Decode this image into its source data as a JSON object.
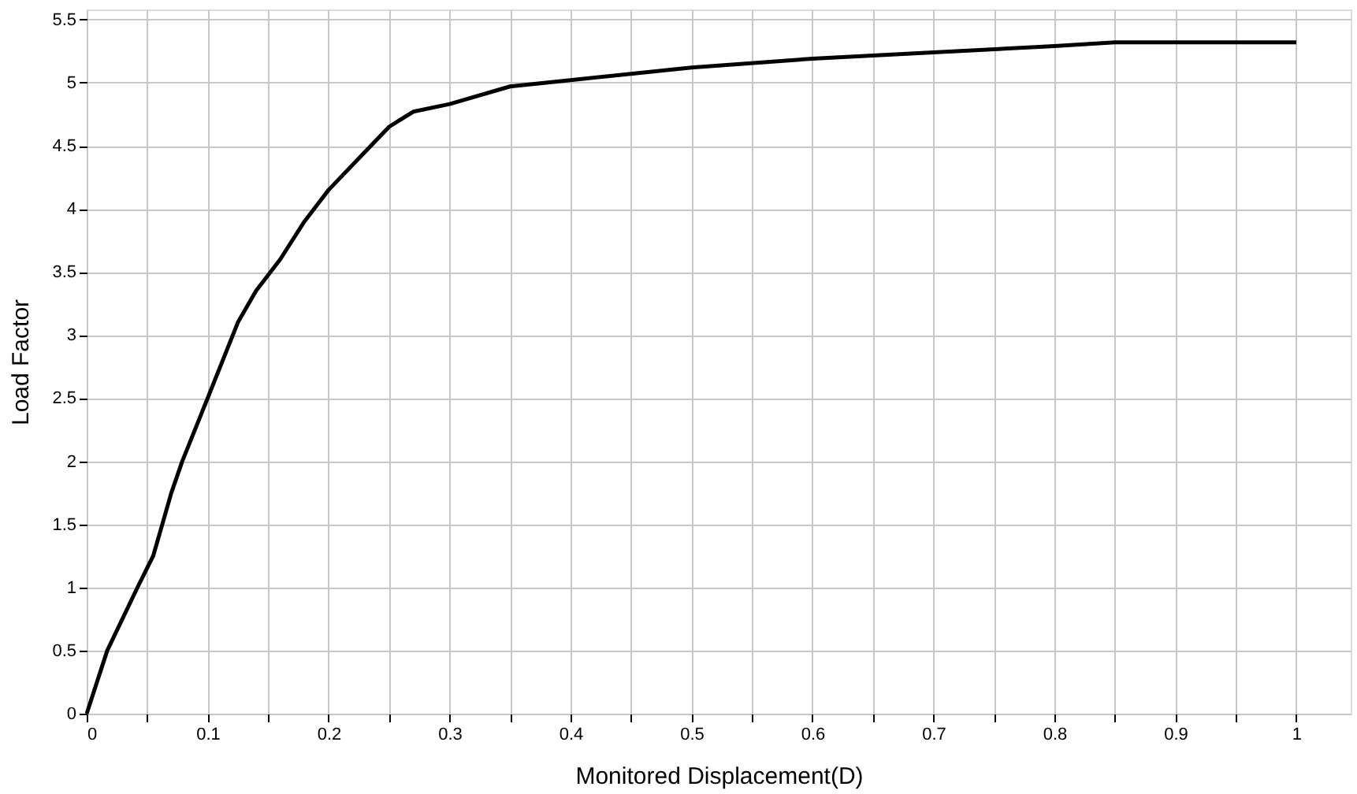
{
  "chart_data": {
    "type": "line",
    "xlabel": "Monitored Displacement(D)",
    "ylabel": "Load Factor",
    "xlim": [
      0,
      1.045
    ],
    "ylim": [
      0,
      5.58
    ],
    "xticks": [
      0,
      {
        "value": 0.05,
        "label": null
      },
      0.1,
      {
        "value": 0.15,
        "label": null
      },
      0.2,
      {
        "value": 0.25,
        "label": null
      },
      0.3,
      {
        "value": 0.35,
        "label": null
      },
      0.4,
      {
        "value": 0.45,
        "label": null
      },
      0.5,
      {
        "value": 0.55,
        "label": null
      },
      0.6,
      {
        "value": 0.65,
        "label": null
      },
      0.7,
      {
        "value": 0.75,
        "label": null
      },
      0.8,
      {
        "value": 0.85,
        "label": null
      },
      0.9,
      {
        "value": 0.95,
        "label": null
      },
      1
    ],
    "yticks": [
      0,
      0.5,
      1,
      1.5,
      2,
      2.5,
      3,
      3.5,
      4,
      4.5,
      5,
      5.5
    ],
    "grid": true,
    "marker": "none",
    "line_style": "solid",
    "series": [
      {
        "color": "#000000",
        "x": [
          0,
          0.017,
          0.042,
          0.055,
          0.07,
          0.079,
          0.1,
          0.125,
          0.14,
          0.16,
          0.18,
          0.2,
          0.225,
          0.25,
          0.27,
          0.3,
          0.35,
          0.4,
          0.5,
          0.6,
          0.7,
          0.8,
          0.85,
          0.9,
          1.0
        ],
        "values": [
          0,
          0.5,
          1.0,
          1.25,
          1.75,
          2.0,
          2.5,
          3.1,
          3.35,
          3.6,
          3.9,
          4.15,
          4.4,
          4.65,
          4.77,
          4.83,
          4.97,
          5.02,
          5.12,
          5.19,
          5.24,
          5.29,
          5.32,
          5.32,
          5.32
        ]
      }
    ]
  }
}
